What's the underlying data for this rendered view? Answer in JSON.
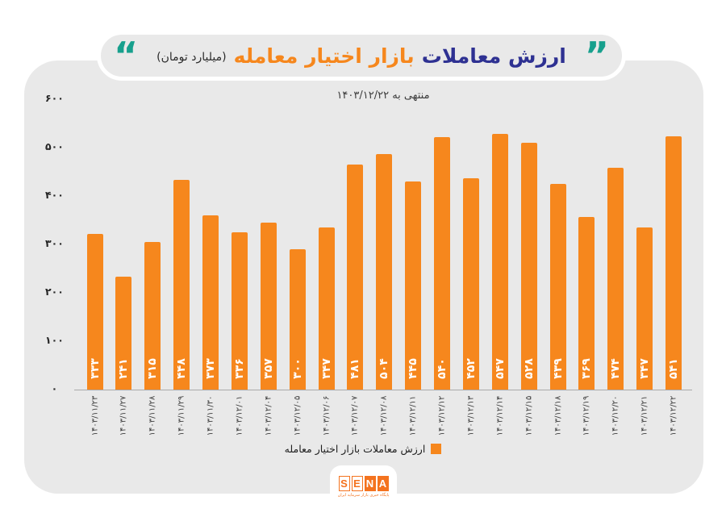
{
  "colors": {
    "bar_orange": "#f6871d",
    "title_navy": "#2e3192",
    "title_orange": "#f6871d",
    "quote_teal": "#17a08d",
    "panel_gray": "#e9e9e9",
    "logo_orange": "#f4731f"
  },
  "header": {
    "quote_left": "“",
    "quote_right": "”",
    "title_main": "ارزش معاملات",
    "title_highlight": "بازار اختیار معامله",
    "title_unit": "(میلیارد تومان)"
  },
  "subtitle": "منتهی به ۱۴۰۳/۱۲/۲۲",
  "chart_data": {
    "type": "bar",
    "title": "ارزش معاملات بازار اختیار معامله (میلیارد تومان)",
    "subtitle": "منتهی به ۱۴۰۳/۱۲/۲۲",
    "xlabel": "",
    "ylabel": "میلیارد تومان",
    "ylim": [
      0,
      600
    ],
    "grid": false,
    "legend_position": "bottom",
    "bar_color": "#f6871d",
    "categories": [
      "۱۴۰۳/۱۱/۲۳",
      "۱۴۰۳/۱۱/۲۷",
      "۱۴۰۳/۱۱/۲۸",
      "۱۴۰۳/۱۱/۲۹",
      "۱۴۰۳/۱۱/۳۰",
      "۱۴۰۳/۱۲/۰۱",
      "۱۴۰۳/۱۲/۰۴",
      "۱۴۰۳/۱۲/۰۵",
      "۱۴۰۳/۱۲/۰۶",
      "۱۴۰۳/۱۲/۰۷",
      "۱۴۰۳/۱۲/۰۸",
      "۱۴۰۳/۱۲/۱۱",
      "۱۴۰۳/۱۲/۱۲",
      "۱۴۰۳/۱۲/۱۳",
      "۱۴۰۳/۱۲/۱۴",
      "۱۴۰۳/۱۲/۱۵",
      "۱۴۰۳/۱۲/۱۸",
      "۱۴۰۳/۱۲/۱۹",
      "۱۴۰۳/۱۲/۲۰",
      "۱۴۰۳/۱۲/۲۱",
      "۱۴۰۳/۱۲/۲۲"
    ],
    "values": [
      333,
      241,
      315,
      448,
      373,
      336,
      357,
      300,
      347,
      481,
      504,
      445,
      540,
      452,
      547,
      528,
      439,
      369,
      474,
      347,
      541
    ],
    "value_labels": [
      "۳۳۳",
      "۲۴۱",
      "۳۱۵",
      "۴۴۸",
      "۳۷۳",
      "۳۳۶",
      "۳۵۷",
      "۳۰۰",
      "۳۴۷",
      "۴۸۱",
      "۵۰۴",
      "۴۴۵",
      "۵۴۰",
      "۴۵۲",
      "۵۴۷",
      "۵۲۸",
      "۴۳۹",
      "۳۶۹",
      "۴۷۴",
      "۳۴۷",
      "۵۴۱"
    ],
    "y_ticks": [
      {
        "label": "۶۰۰",
        "value": 600
      },
      {
        "label": "۵۰۰",
        "value": 500
      },
      {
        "label": "۴۰۰",
        "value": 400
      },
      {
        "label": "۳۰۰",
        "value": 300
      },
      {
        "label": "۲۰۰",
        "value": 200
      },
      {
        "label": "۱۰۰",
        "value": 100
      },
      {
        "label": "۰",
        "value": 0
      }
    ],
    "legend": {
      "label": "ارزش معاملات بازار اختیار معامله",
      "color": "#f6871d"
    }
  },
  "footer_logo": {
    "letters": [
      "S",
      "E",
      "N",
      "A"
    ],
    "tagline": "پایگاه خبری بازار سرمایه ایران"
  }
}
